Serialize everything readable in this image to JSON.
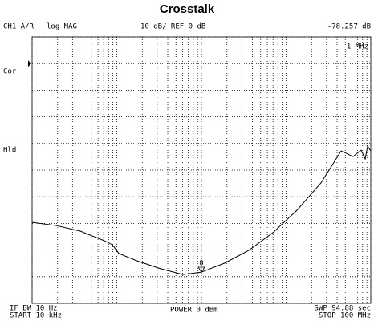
{
  "chart_data": {
    "type": "line",
    "title": "Crosstalk",
    "header": {
      "channel": "CH1 A/R",
      "format": "log MAG",
      "scale": "10 dB/ REF 0 dB",
      "marker_readout": "-78.257 dB",
      "marker_freq": "1 MHz"
    },
    "annotations": {
      "cor": "Cor",
      "hld": "Hld"
    },
    "footer": {
      "ifbw": "IF BW 10 Hz",
      "start": "START 10 kHz",
      "power": "POWER 0 dBm",
      "sweep": "SWP 94.88 sec",
      "stop": "STOP 100 MHz"
    },
    "xscale": "log",
    "xlim": [
      10000,
      100000000
    ],
    "ylim": [
      -90,
      10
    ],
    "ref_level": 0,
    "xticks": [
      10000,
      20000,
      30000,
      40000,
      50000,
      60000,
      70000,
      80000,
      90000,
      100000,
      200000,
      300000,
      400000,
      500000,
      600000,
      700000,
      800000,
      900000,
      1000000,
      2000000,
      3000000,
      4000000,
      5000000,
      6000000,
      7000000,
      8000000,
      9000000,
      10000000,
      20000000,
      30000000,
      40000000,
      50000000,
      60000000,
      70000000,
      80000000,
      90000000,
      100000000
    ],
    "yticks": [
      -90,
      -80,
      -70,
      -60,
      -50,
      -40,
      -30,
      -20,
      -10,
      0,
      10
    ],
    "grid": true,
    "x": [
      10000,
      19200,
      37000,
      71000,
      88700,
      106000,
      171000,
      329000,
      606000,
      1000000,
      1880000,
      3630000,
      6980000,
      13400000,
      25800000,
      44600000,
      61800000,
      76900000,
      85900000,
      91700000,
      100000000
    ],
    "series": [
      {
        "color": "#000000",
        "values": [
          -59.6,
          -60.8,
          -62.9,
          -66.5,
          -68.0,
          -71.3,
          -74.0,
          -77.0,
          -79.2,
          -78.3,
          -74.9,
          -70.1,
          -63.5,
          -55.1,
          -44.8,
          -32.8,
          -34.9,
          -32.5,
          -35.8,
          -31.0,
          -32.8
        ]
      }
    ],
    "marker": {
      "label": "0",
      "x": 1000000,
      "value": -78.257
    }
  }
}
